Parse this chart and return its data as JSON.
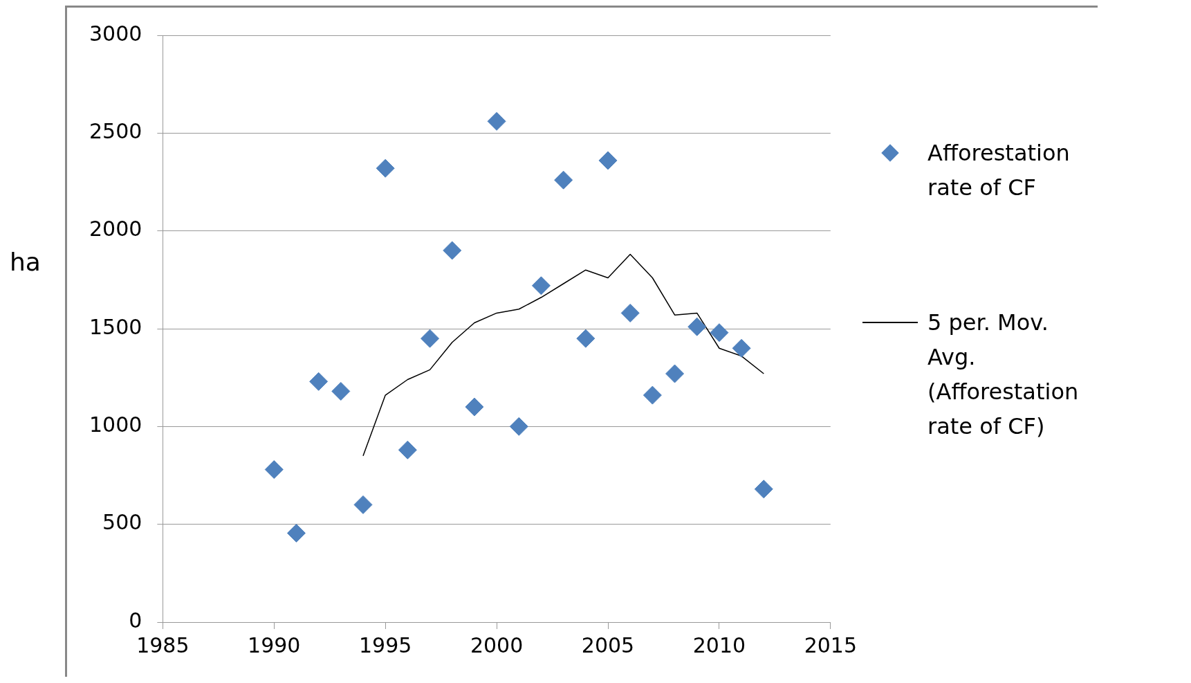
{
  "chart_data": {
    "type": "scatter",
    "ylabel": "ha",
    "xlim": [
      1985,
      2015
    ],
    "xticks": [
      1985,
      1990,
      1995,
      2000,
      2005,
      2010,
      2015
    ],
    "ylim": [
      0,
      3000
    ],
    "yticks": [
      0,
      500,
      1000,
      1500,
      2000,
      2500,
      3000
    ],
    "grid": "y",
    "legend": "right",
    "series": [
      {
        "name": "Afforestation rate of CF",
        "type": "scatter",
        "marker": "diamond",
        "color": "#4f81bd",
        "x": [
          1990,
          1991,
          1992,
          1993,
          1994,
          1995,
          1996,
          1997,
          1998,
          1999,
          2000,
          2001,
          2002,
          2003,
          2004,
          2005,
          2006,
          2007,
          2008,
          2009,
          2010,
          2011,
          2012
        ],
        "values": [
          780,
          455,
          1230,
          1180,
          600,
          2320,
          880,
          1450,
          1900,
          1100,
          2560,
          1000,
          1720,
          2260,
          1450,
          2360,
          1580,
          1160,
          1270,
          1510,
          1480,
          1400,
          680
        ]
      },
      {
        "name": "5 per. Mov. Avg. (Afforestation rate of CF)",
        "type": "line",
        "marker": "none",
        "line_style": "solid",
        "color": "#000000",
        "x": [
          1994,
          1995,
          1996,
          1997,
          1998,
          1999,
          2000,
          2001,
          2002,
          2003,
          2004,
          2005,
          2006,
          2007,
          2008,
          2009,
          2010,
          2011,
          2012
        ],
        "values": [
          850,
          1160,
          1240,
          1290,
          1430,
          1530,
          1580,
          1600,
          1660,
          1730,
          1800,
          1760,
          1880,
          1760,
          1570,
          1580,
          1400,
          1360,
          1270
        ]
      }
    ]
  }
}
